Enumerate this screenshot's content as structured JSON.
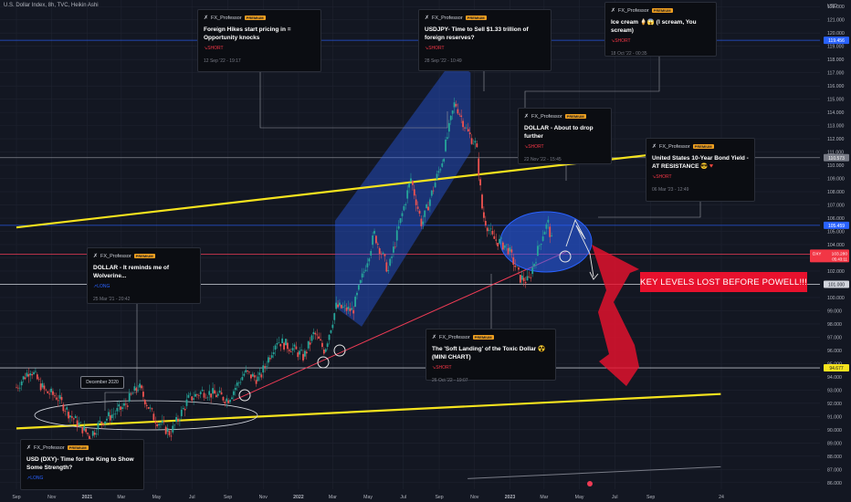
{
  "header": {
    "title": "U.S. Dollar Index, 8h, TVC, Heikin Ashi"
  },
  "chart_data": {
    "type": "candlestick",
    "symbol": "DXY",
    "ylim": [
      85.5,
      122.5
    ],
    "y_ticks": [
      86,
      87,
      88,
      89,
      90,
      91,
      92,
      93,
      94,
      95,
      96,
      97,
      98,
      99,
      100,
      101,
      102,
      103,
      104,
      105,
      106,
      107,
      108,
      109,
      110,
      111,
      112,
      113,
      114,
      115,
      116,
      117,
      118,
      119,
      120,
      121,
      122
    ],
    "y_tick_labels": [
      "86.000",
      "87.000",
      "88.000",
      "89.000",
      "90.000",
      "91.000",
      "92.000",
      "93.000",
      "94.000",
      "95.000",
      "96.000",
      "97.000",
      "98.000",
      "99.000",
      "100.000",
      "101.000",
      "102.000",
      "103.000",
      "104.000",
      "105.000",
      "106.000",
      "107.000",
      "108.000",
      "109.000",
      "110.000",
      "111.000",
      "112.000",
      "113.000",
      "114.000",
      "115.000",
      "116.000",
      "117.000",
      "118.000",
      "119.000",
      "120.000",
      "121.000",
      "122.000"
    ],
    "y_axis_unit": "USD",
    "x_tick_labels": [
      "Sep",
      "Nov",
      "2021",
      "Mar",
      "May",
      "Jul",
      "Sep",
      "Nov",
      "2022",
      "Mar",
      "May",
      "Jul",
      "Sep",
      "Nov",
      "2023",
      "Mar",
      "May",
      "Jul",
      "Sep",
      "24"
    ],
    "price_path": [
      [
        "2020-09-01",
        93.2
      ],
      [
        "2020-09-25",
        94.6
      ],
      [
        "2020-10-20",
        92.9
      ],
      [
        "2020-11-10",
        92.5
      ],
      [
        "2020-12-05",
        91.0
      ],
      [
        "2021-01-06",
        89.5
      ],
      [
        "2021-01-25",
        90.6
      ],
      [
        "2021-03-05",
        91.7
      ],
      [
        "2021-03-31",
        93.3
      ],
      [
        "2021-04-25",
        91.0
      ],
      [
        "2021-05-25",
        89.7
      ],
      [
        "2021-06-25",
        92.3
      ],
      [
        "2021-07-20",
        92.9
      ],
      [
        "2021-08-15",
        92.6
      ],
      [
        "2021-09-01",
        92.3
      ],
      [
        "2021-09-30",
        94.3
      ],
      [
        "2021-10-25",
        93.8
      ],
      [
        "2021-11-24",
        96.8
      ],
      [
        "2021-12-20",
        96.2
      ],
      [
        "2022-01-10",
        95.5
      ],
      [
        "2022-01-28",
        97.3
      ],
      [
        "2022-02-15",
        96.0
      ],
      [
        "2022-03-07",
        99.3
      ],
      [
        "2022-04-05",
        99.0
      ],
      [
        "2022-05-12",
        104.8
      ],
      [
        "2022-06-05",
        102.0
      ],
      [
        "2022-07-14",
        109.0
      ],
      [
        "2022-08-02",
        105.5
      ],
      [
        "2022-09-07",
        110.5
      ],
      [
        "2022-09-28",
        114.8
      ],
      [
        "2022-10-20",
        112.5
      ],
      [
        "2022-11-04",
        111.5
      ],
      [
        "2022-11-15",
        106.3
      ],
      [
        "2022-12-02",
        104.5
      ],
      [
        "2022-12-28",
        103.8
      ],
      [
        "2023-01-18",
        101.5
      ],
      [
        "2023-02-02",
        101.2
      ],
      [
        "2023-02-28",
        105.0
      ],
      [
        "2023-03-08",
        105.6
      ],
      [
        "2023-03-16",
        103.8
      ]
    ],
    "horizontal_levels": [
      {
        "label": "119.456",
        "value": 119.456
      },
      {
        "label": "110.573",
        "value": 110.573
      },
      {
        "label": "105.459",
        "value": 105.459
      },
      {
        "label": "103.280",
        "value": 103.28
      },
      {
        "label": "101.000",
        "value": 101.0
      },
      {
        "label": "94.677",
        "value": 94.677
      }
    ],
    "price_tag": {
      "symbol": "DXY",
      "value": "103.280",
      "countdown": "05:43:11"
    },
    "trend_lines": [
      {
        "from": [
          "2020-09-01",
          90.1
        ],
        "to": [
          "2023-12-31",
          92.7
        ],
        "color": "#f5e31e"
      },
      {
        "from": [
          "2020-09-01",
          105.3
        ],
        "to": [
          "2023-12-31",
          111.4
        ],
        "color": "#f5e31e"
      },
      {
        "from": [
          "2021-09-10",
          92.2
        ],
        "to": [
          "2023-04-10",
          103.5
        ],
        "color": "#ef3b55"
      },
      {
        "from": [
          "2022-10-20",
          86.3
        ],
        "to": [
          "2023-12-31",
          87.2
        ],
        "color": "#787b86"
      }
    ],
    "annotations": [
      {
        "label": "December 2020",
        "date": "2020-12-15"
      },
      {
        "label": "KEY LEVELS LOST BEFORE POWELL!!!"
      }
    ],
    "ideas": [
      {
        "author": "FX_Professor",
        "badge": "PREMIUM",
        "title": "Foreign Hikes start pricing in = Opportunity knocks",
        "side": "SHORT",
        "date": "12 Sep '22 - 19:17"
      },
      {
        "author": "FX_Professor",
        "badge": "PREMIUM",
        "title": "USDJPY- Time to Sell  $1.33 trillion of foreign reserves?",
        "side": "SHORT",
        "date": "28 Sep '22 - 10:49"
      },
      {
        "author": "FX_Professor",
        "badge": "PREMIUM",
        "title": "Ice cream 🍦😱 (I scream, You scream)",
        "side": "SHORT",
        "date": "18 Oct '22 - 00:35"
      },
      {
        "author": "FX_Professor",
        "badge": "PREMIUM",
        "title": "DOLLAR - About to drop further",
        "side": "SHORT",
        "date": "22 Nov '22 - 15:45"
      },
      {
        "author": "FX_Professor",
        "badge": "PREMIUM",
        "title": "United States 10-Year Bond Yield - AT RESISTANCE 😎🔻",
        "side": "SHORT",
        "date": "06 Mar '23 - 12:49"
      },
      {
        "author": "FX_Professor",
        "badge": "PREMIUM",
        "title": "DOLLAR - It reminds me of Wolverine...",
        "side": "LONG",
        "date": "25 Mar '21 - 20:42"
      },
      {
        "author": "FX_Professor",
        "badge": "PREMIUM",
        "title": "The 'Soft Landing' of the Toxic Dollar ☢️ (MINI CHART)",
        "side": "SHORT",
        "date": "26 Oct '22 - 19:07"
      },
      {
        "author": "FX_Professor",
        "badge": "PREMIUM",
        "title": "USD (DXY)- Time for the King to Show Some Strength?",
        "side": "LONG",
        "date": ""
      }
    ]
  },
  "colors": {
    "up": "#26a69a",
    "down": "#ef5350",
    "bg": "#131722",
    "grid": "#1f2330",
    "yellow": "#f5e31e",
    "red": "#ef3b55",
    "channel": "#2962ff"
  }
}
